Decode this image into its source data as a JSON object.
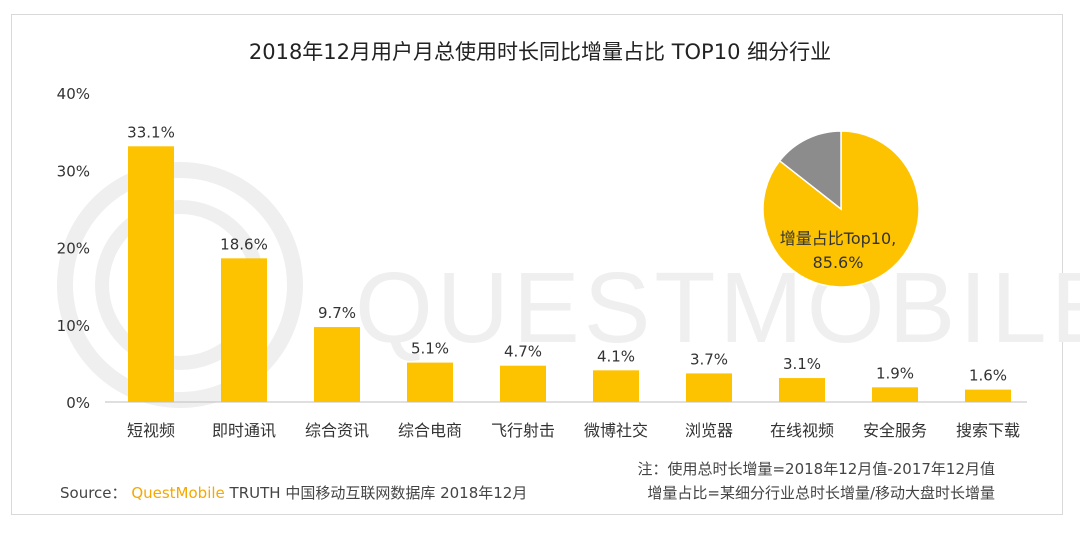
{
  "colors": {
    "bar": "#FDC300",
    "pie_main": "#FDC300",
    "pie_rest": "#8C8C8C",
    "watermark": "#efefef"
  },
  "watermark_text": "QUESTMOBILE",
  "chart_data": {
    "type": "bar",
    "title": "2018年12月用户月总使用时长同比增量占比 TOP10 细分行业",
    "categories": [
      "短视频",
      "即时通讯",
      "综合资讯",
      "综合电商",
      "飞行射击",
      "微博社交",
      "浏览器",
      "在线视频",
      "安全服务",
      "搜索下载"
    ],
    "values": [
      33.1,
      18.6,
      9.7,
      5.1,
      4.7,
      4.1,
      3.7,
      3.1,
      1.9,
      1.6
    ],
    "value_labels": [
      "33.1%",
      "18.6%",
      "9.7%",
      "5.1%",
      "4.7%",
      "4.1%",
      "3.7%",
      "3.1%",
      "1.9%",
      "1.6%"
    ],
    "ylim": [
      0,
      40
    ],
    "yticks": [
      0,
      10,
      20,
      30,
      40
    ],
    "ytick_labels": [
      "0%",
      "10%",
      "20%",
      "30%",
      "40%"
    ],
    "grid": false,
    "inset_pie": {
      "type": "pie",
      "slices": [
        {
          "label_line1": "增量占比Top10,",
          "label_line2": "85.6%",
          "value": 85.6
        },
        {
          "value": 14.4
        }
      ]
    }
  },
  "footer": {
    "source_prefix": "Source：",
    "source_brand": "QuestMobile",
    "source_rest": "TRUTH 中国移动互联网数据库 2018年12月",
    "note1": "注：使用总时长增量=2018年12月值-2017年12月值",
    "note2": "增量占比=某细分行业总时长增量/移动大盘时长增量"
  }
}
